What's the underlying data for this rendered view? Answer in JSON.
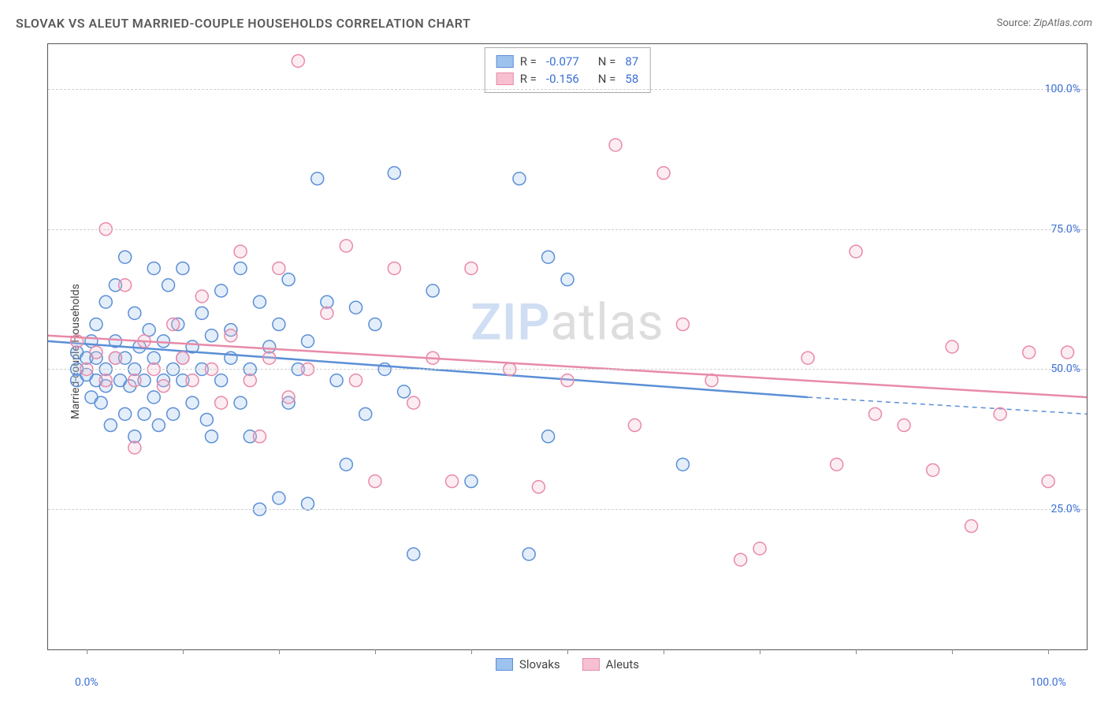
{
  "header": {
    "title": "SLOVAK VS ALEUT MARRIED-COUPLE HOUSEHOLDS CORRELATION CHART",
    "source_label": "Source:",
    "source_name": "ZipAtlas.com"
  },
  "y_axis": {
    "label": "Married-couple Households"
  },
  "watermark": {
    "part1": "ZIP",
    "part2": "atlas"
  },
  "chart": {
    "type": "scatter",
    "background_color": "#ffffff",
    "grid_color": "#d0d0d0",
    "axis_text_color": "#3b6fd6",
    "x_range": [
      -4,
      104
    ],
    "y_range": [
      0,
      108
    ],
    "y_ticks": [
      {
        "v": 25,
        "label": "25.0%"
      },
      {
        "v": 50,
        "label": "50.0%"
      },
      {
        "v": 75,
        "label": "75.0%"
      },
      {
        "v": 100,
        "label": "100.0%"
      }
    ],
    "x_ticks_minor": [
      0,
      10,
      20,
      30,
      40,
      50,
      60,
      70,
      80,
      90,
      100
    ],
    "x_tick_labels": [
      {
        "v": 0,
        "label": "0.0%"
      },
      {
        "v": 100,
        "label": "100.0%"
      }
    ],
    "marker_radius": 8,
    "marker_stroke_width": 1.5,
    "marker_fill_opacity": 0.28,
    "trend_line_width": 2.5,
    "series": [
      {
        "key": "slovaks",
        "label": "Slovaks",
        "color_stroke": "#5b8fd6",
        "color_fill": "#9ec2ee",
        "r_value": "-0.077",
        "n_value": "87",
        "trend": {
          "x1": -4,
          "y1": 55,
          "x2": 75,
          "y2": 45,
          "extend_x2": 104,
          "extend_y2": 42,
          "dash_after": true
        },
        "points": [
          [
            -1,
            53
          ],
          [
            -1,
            50
          ],
          [
            -1,
            48
          ],
          [
            0,
            52
          ],
          [
            0,
            49
          ],
          [
            0.5,
            45
          ],
          [
            0.5,
            55
          ],
          [
            1,
            52
          ],
          [
            1,
            58
          ],
          [
            1,
            48
          ],
          [
            1.5,
            44
          ],
          [
            2,
            62
          ],
          [
            2,
            50
          ],
          [
            2,
            47
          ],
          [
            2.5,
            40
          ],
          [
            3,
            55
          ],
          [
            3,
            65
          ],
          [
            3,
            52
          ],
          [
            3.5,
            48
          ],
          [
            4,
            70
          ],
          [
            4,
            52
          ],
          [
            4,
            42
          ],
          [
            4.5,
            47
          ],
          [
            5,
            60
          ],
          [
            5,
            50
          ],
          [
            5,
            38
          ],
          [
            5.5,
            54
          ],
          [
            6,
            48
          ],
          [
            6,
            42
          ],
          [
            6.5,
            57
          ],
          [
            7,
            68
          ],
          [
            7,
            52
          ],
          [
            7,
            45
          ],
          [
            7.5,
            40
          ],
          [
            8,
            55
          ],
          [
            8,
            48
          ],
          [
            8.5,
            65
          ],
          [
            9,
            50
          ],
          [
            9,
            42
          ],
          [
            9.5,
            58
          ],
          [
            10,
            52
          ],
          [
            10,
            48
          ],
          [
            10,
            68
          ],
          [
            11,
            54
          ],
          [
            11,
            44
          ],
          [
            12,
            60
          ],
          [
            12,
            50
          ],
          [
            12.5,
            41
          ],
          [
            13,
            56
          ],
          [
            13,
            38
          ],
          [
            14,
            64
          ],
          [
            14,
            48
          ],
          [
            15,
            52
          ],
          [
            15,
            57
          ],
          [
            16,
            68
          ],
          [
            16,
            44
          ],
          [
            17,
            50
          ],
          [
            17,
            38
          ],
          [
            18,
            62
          ],
          [
            18,
            25
          ],
          [
            19,
            54
          ],
          [
            20,
            58
          ],
          [
            20,
            27
          ],
          [
            21,
            66
          ],
          [
            21,
            44
          ],
          [
            22,
            50
          ],
          [
            23,
            55
          ],
          [
            23,
            26
          ],
          [
            24,
            84
          ],
          [
            25,
            62
          ],
          [
            26,
            48
          ],
          [
            27,
            33
          ],
          [
            28,
            61
          ],
          [
            29,
            42
          ],
          [
            30,
            58
          ],
          [
            31,
            50
          ],
          [
            32,
            85
          ],
          [
            33,
            46
          ],
          [
            34,
            17
          ],
          [
            36,
            64
          ],
          [
            40,
            30
          ],
          [
            45,
            84
          ],
          [
            46,
            17
          ],
          [
            48,
            70
          ],
          [
            50,
            66
          ],
          [
            62,
            33
          ],
          [
            48,
            38
          ]
        ]
      },
      {
        "key": "aleuts",
        "label": "Aleuts",
        "color_stroke": "#e88aa8",
        "color_fill": "#f6c0d0",
        "r_value": "-0.156",
        "n_value": "58",
        "trend": {
          "x1": -4,
          "y1": 56,
          "x2": 104,
          "y2": 45,
          "dash_after": false
        },
        "points": [
          [
            -1,
            55
          ],
          [
            0,
            50
          ],
          [
            1,
            53
          ],
          [
            2,
            48
          ],
          [
            2,
            75
          ],
          [
            3,
            52
          ],
          [
            4,
            65
          ],
          [
            5,
            48
          ],
          [
            5,
            36
          ],
          [
            6,
            55
          ],
          [
            7,
            50
          ],
          [
            8,
            47
          ],
          [
            9,
            58
          ],
          [
            10,
            52
          ],
          [
            11,
            48
          ],
          [
            12,
            63
          ],
          [
            13,
            50
          ],
          [
            14,
            44
          ],
          [
            15,
            56
          ],
          [
            16,
            71
          ],
          [
            17,
            48
          ],
          [
            18,
            38
          ],
          [
            19,
            52
          ],
          [
            20,
            68
          ],
          [
            21,
            45
          ],
          [
            22,
            105
          ],
          [
            23,
            50
          ],
          [
            25,
            60
          ],
          [
            27,
            72
          ],
          [
            28,
            48
          ],
          [
            30,
            30
          ],
          [
            32,
            68
          ],
          [
            34,
            44
          ],
          [
            36,
            52
          ],
          [
            38,
            30
          ],
          [
            40,
            68
          ],
          [
            44,
            50
          ],
          [
            47,
            29
          ],
          [
            50,
            48
          ],
          [
            55,
            90
          ],
          [
            57,
            40
          ],
          [
            60,
            85
          ],
          [
            62,
            58
          ],
          [
            65,
            48
          ],
          [
            68,
            16
          ],
          [
            70,
            18
          ],
          [
            75,
            52
          ],
          [
            78,
            33
          ],
          [
            80,
            71
          ],
          [
            82,
            42
          ],
          [
            85,
            40
          ],
          [
            88,
            32
          ],
          [
            90,
            54
          ],
          [
            92,
            22
          ],
          [
            95,
            42
          ],
          [
            98,
            53
          ],
          [
            100,
            30
          ],
          [
            102,
            53
          ]
        ]
      }
    ],
    "legend_bottom_labels": {
      "slovaks": "Slovaks",
      "aleuts": "Aleuts"
    },
    "legend_labels": {
      "r": "R =",
      "n": "N ="
    }
  }
}
